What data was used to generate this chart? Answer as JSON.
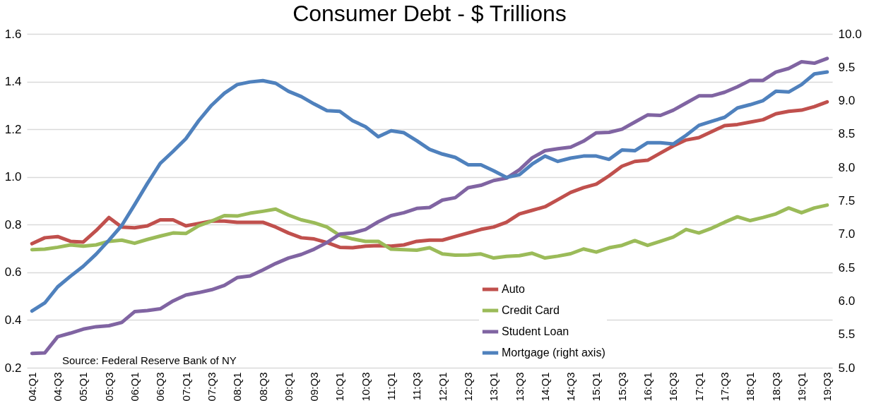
{
  "chart_data": {
    "type": "line",
    "title": "Consumer Debt - $ Trillions",
    "categories": [
      "04:Q1",
      null,
      "04:Q3",
      null,
      "05:Q1",
      null,
      "05:Q3",
      null,
      "06:Q1",
      null,
      "06:Q3",
      null,
      "07:Q1",
      null,
      "07:Q3",
      null,
      "08:Q1",
      null,
      "08:Q3",
      null,
      "09:Q1",
      null,
      "09:Q3",
      null,
      "10:Q1",
      null,
      "10:Q3",
      null,
      "11:Q1",
      null,
      "11:Q3",
      null,
      "12:Q1",
      null,
      "12:Q3",
      null,
      "13:Q1",
      null,
      "13:Q3",
      null,
      "14:Q1",
      null,
      "14:Q3",
      null,
      "15:Q1",
      null,
      "15:Q3",
      null,
      "16:Q1",
      null,
      "16:Q3",
      null,
      "17:Q1",
      null,
      "17:Q3",
      null,
      "18:Q1",
      null,
      "18:Q3",
      null,
      "19:Q1",
      null,
      "19:Q3"
    ],
    "series": [
      {
        "name": "Auto",
        "color": "#c0504d",
        "values": [
          0.72,
          0.745,
          0.75,
          0.73,
          0.727,
          0.775,
          0.83,
          0.79,
          0.787,
          0.795,
          0.82,
          0.82,
          0.795,
          0.805,
          0.815,
          0.815,
          0.81,
          0.81,
          0.81,
          0.79,
          0.765,
          0.745,
          0.74,
          0.725,
          0.705,
          0.703,
          0.71,
          0.712,
          0.71,
          0.715,
          0.73,
          0.735,
          0.735,
          0.75,
          0.765,
          0.78,
          0.79,
          0.81,
          0.845,
          0.86,
          0.875,
          0.905,
          0.935,
          0.955,
          0.97,
          1.005,
          1.045,
          1.065,
          1.07,
          1.1,
          1.13,
          1.155,
          1.165,
          1.19,
          1.215,
          1.22,
          1.23,
          1.24,
          1.265,
          1.275,
          1.28,
          1.295,
          1.315
        ]
      },
      {
        "name": "Credit Card",
        "color": "#9bbb59",
        "values": [
          0.695,
          0.697,
          0.705,
          0.715,
          0.71,
          0.715,
          0.73,
          0.735,
          0.722,
          0.738,
          0.752,
          0.765,
          0.763,
          0.795,
          0.815,
          0.838,
          0.836,
          0.848,
          0.856,
          0.865,
          0.84,
          0.82,
          0.808,
          0.79,
          0.755,
          0.74,
          0.73,
          0.73,
          0.697,
          0.695,
          0.693,
          0.703,
          0.677,
          0.672,
          0.673,
          0.677,
          0.66,
          0.667,
          0.67,
          0.68,
          0.66,
          0.668,
          0.678,
          0.698,
          0.685,
          0.703,
          0.713,
          0.733,
          0.713,
          0.73,
          0.748,
          0.78,
          0.765,
          0.785,
          0.81,
          0.833,
          0.817,
          0.83,
          0.845,
          0.87,
          0.85,
          0.87,
          0.882
        ]
      },
      {
        "name": "Student Loan",
        "color": "#8064a2",
        "values": [
          0.26,
          0.262,
          0.33,
          0.345,
          0.362,
          0.372,
          0.376,
          0.39,
          0.435,
          0.44,
          0.447,
          0.48,
          0.505,
          0.515,
          0.527,
          0.545,
          0.578,
          0.585,
          0.61,
          0.637,
          0.66,
          0.675,
          0.697,
          0.725,
          0.76,
          0.765,
          0.78,
          0.812,
          0.838,
          0.85,
          0.868,
          0.872,
          0.903,
          0.913,
          0.955,
          0.965,
          0.985,
          0.995,
          1.03,
          1.08,
          1.11,
          1.118,
          1.125,
          1.15,
          1.185,
          1.187,
          1.2,
          1.23,
          1.26,
          1.258,
          1.28,
          1.31,
          1.34,
          1.34,
          1.355,
          1.378,
          1.405,
          1.405,
          1.44,
          1.455,
          1.483,
          1.477,
          1.497
        ]
      },
      {
        "name": "Mortgage (right axis)",
        "color": "#4f81bd",
        "axis": "y2",
        "values": [
          5.85,
          5.97,
          6.21,
          6.37,
          6.52,
          6.7,
          6.91,
          7.13,
          7.44,
          7.76,
          8.06,
          8.24,
          8.43,
          8.7,
          8.93,
          9.11,
          9.24,
          9.28,
          9.3,
          9.26,
          9.14,
          9.06,
          8.95,
          8.85,
          8.84,
          8.7,
          8.61,
          8.46,
          8.55,
          8.52,
          8.4,
          8.27,
          8.2,
          8.15,
          8.04,
          8.04,
          7.95,
          7.85,
          7.89,
          8.05,
          8.17,
          8.09,
          8.14,
          8.17,
          8.17,
          8.12,
          8.26,
          8.25,
          8.37,
          8.37,
          8.35,
          8.48,
          8.63,
          8.69,
          8.75,
          8.89,
          8.94,
          9.0,
          9.14,
          9.13,
          9.24,
          9.4,
          9.43
        ]
      }
    ],
    "ylim": [
      0.2,
      1.6
    ],
    "yticks": [
      0.2,
      0.4,
      0.6,
      0.8,
      {
        "value": 1,
        "label": "1.0"
      },
      1.2,
      1.4,
      1.6
    ],
    "y2lim": [
      5.0,
      10.0
    ],
    "y2ticks": [
      {
        "value": 5,
        "label": "5.0"
      },
      5.5,
      {
        "value": 6,
        "label": "6.0"
      },
      6.5,
      {
        "value": 7,
        "label": "7.0"
      },
      7.5,
      {
        "value": 8,
        "label": "8.0"
      },
      8.5,
      {
        "value": 9,
        "label": "9.0"
      },
      9.5,
      {
        "value": 10,
        "label": "10.0"
      }
    ],
    "grid": "y",
    "legend": "bottom",
    "annotations": [
      "Source: Federal Reserve Bank of NY"
    ]
  }
}
